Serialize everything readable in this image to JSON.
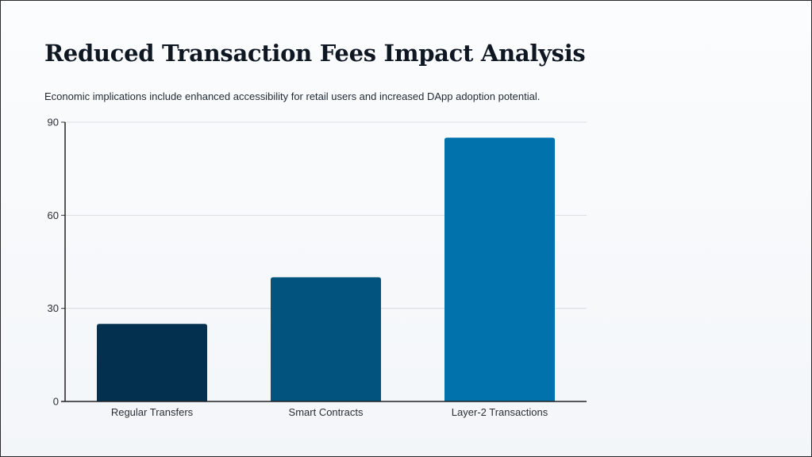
{
  "slide": {
    "title": "Reduced Transaction Fees Impact Analysis",
    "subtitle": "Economic implications include enhanced accessibility for retail users and increased DApp adoption potential."
  },
  "chart_data": {
    "type": "bar",
    "categories": [
      "Regular Transfers",
      "Smart Contracts",
      "Layer-2 Transactions"
    ],
    "values": [
      25,
      40,
      85
    ],
    "colors": [
      "#04304f",
      "#02547f",
      "#0172ac"
    ],
    "yticks": [
      0,
      30,
      60,
      90
    ],
    "ylim": [
      0,
      90
    ],
    "grid": true,
    "legend": "none",
    "title": "",
    "xlabel": "",
    "ylabel": ""
  }
}
